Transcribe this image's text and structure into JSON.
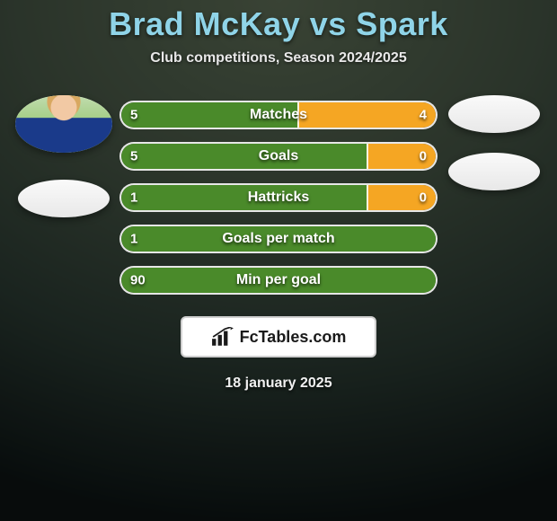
{
  "title": "Brad McKay vs Spark",
  "subtitle": "Club competitions, Season 2024/2025",
  "date": "18 january 2025",
  "logo_text": "FcTables.com",
  "player_left": {
    "name": "Brad McKay",
    "has_photo": true
  },
  "player_right": {
    "name": "Spark",
    "has_photo": false
  },
  "colors": {
    "left_bar": "#4a8a2a",
    "right_bar": "#f5a623",
    "title": "#8fd4e8",
    "text": "#ffffff",
    "badge_bg": "#ffffff",
    "badge_border": "#cfcfcf"
  },
  "stats": [
    {
      "label": "Matches",
      "left_val": "5",
      "right_val": "4",
      "left_pct": 56,
      "right_pct": 44
    },
    {
      "label": "Goals",
      "left_val": "5",
      "right_val": "0",
      "left_pct": 78,
      "right_pct": 22
    },
    {
      "label": "Hattricks",
      "left_val": "1",
      "right_val": "0",
      "left_pct": 78,
      "right_pct": 22
    },
    {
      "label": "Goals per match",
      "left_val": "1",
      "right_val": "",
      "left_pct": 100,
      "right_pct": 0
    },
    {
      "label": "Min per goal",
      "left_val": "90",
      "right_val": "",
      "left_pct": 100,
      "right_pct": 0
    }
  ]
}
